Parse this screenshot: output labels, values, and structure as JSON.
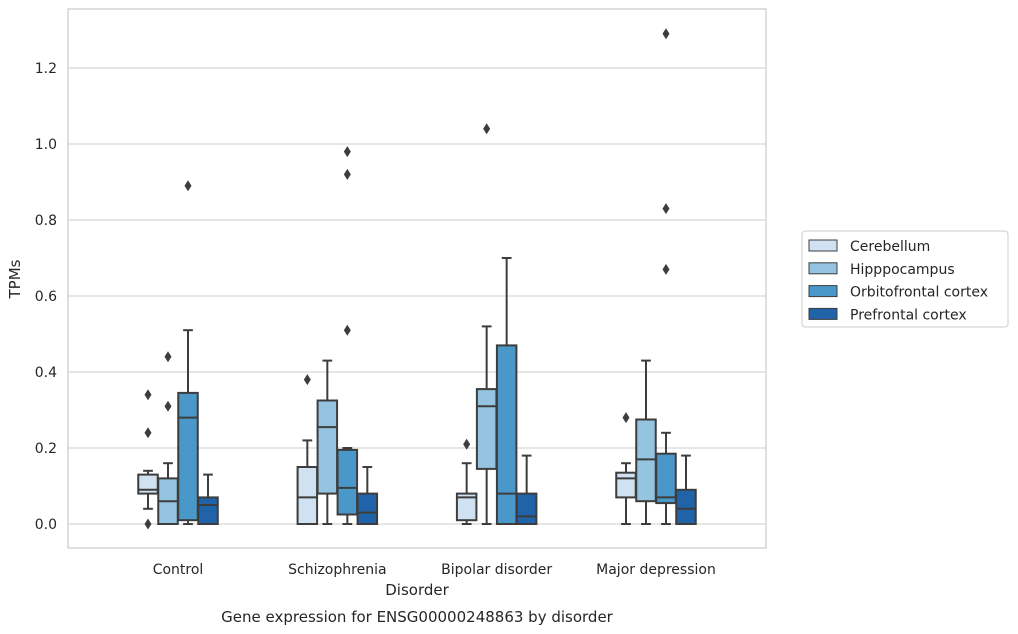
{
  "chart_data": {
    "type": "box",
    "title": "Gene expression for ENSG00000248863 by disorder",
    "xlabel": "Disorder",
    "ylabel": "TPMs",
    "ylim": [
      -0.065,
      1.355
    ],
    "yticks": [
      "0.0",
      "0.2",
      "0.4",
      "0.6",
      "0.8",
      "1.0",
      "1.2"
    ],
    "grid": true,
    "legend_position": "right",
    "categories": [
      "Control",
      "Schizophrenia",
      "Bipolar disorder",
      "Major depression"
    ],
    "series": [
      {
        "name": "Cerebellum",
        "color": "#d0e1f2",
        "boxes": [
          {
            "whislo": 0.04,
            "q1": 0.08,
            "med": 0.09,
            "q3": 0.13,
            "whishi": 0.14,
            "fliers": [
              0.0,
              0.24,
              0.34
            ]
          },
          {
            "whislo": 0.0,
            "q1": 0.0,
            "med": 0.07,
            "q3": 0.15,
            "whishi": 0.22,
            "fliers": [
              0.38
            ]
          },
          {
            "whislo": 0.0,
            "q1": 0.01,
            "med": 0.07,
            "q3": 0.08,
            "whishi": 0.16,
            "fliers": [
              0.21
            ]
          },
          {
            "whislo": 0.0,
            "q1": 0.07,
            "med": 0.12,
            "q3": 0.135,
            "whishi": 0.16,
            "fliers": [
              0.28
            ]
          }
        ]
      },
      {
        "name": "Hipppocampus",
        "color": "#94c4df",
        "boxes": [
          {
            "whislo": 0.0,
            "q1": 0.0,
            "med": 0.06,
            "q3": 0.12,
            "whishi": 0.16,
            "fliers": [
              0.31,
              0.44
            ]
          },
          {
            "whislo": 0.0,
            "q1": 0.08,
            "med": 0.255,
            "q3": 0.325,
            "whishi": 0.43,
            "fliers": []
          },
          {
            "whislo": 0.0,
            "q1": 0.145,
            "med": 0.31,
            "q3": 0.355,
            "whishi": 0.52,
            "fliers": [
              1.04
            ]
          },
          {
            "whislo": 0.0,
            "q1": 0.06,
            "med": 0.17,
            "q3": 0.275,
            "whishi": 0.43,
            "fliers": []
          }
        ]
      },
      {
        "name": "Orbitofrontal cortex",
        "color": "#4a98c9",
        "boxes": [
          {
            "whislo": 0.0,
            "q1": 0.01,
            "med": 0.28,
            "q3": 0.345,
            "whishi": 0.51,
            "fliers": [
              0.89
            ]
          },
          {
            "whislo": 0.0,
            "q1": 0.025,
            "med": 0.095,
            "q3": 0.195,
            "whishi": 0.2,
            "fliers": [
              0.51,
              0.92,
              0.98
            ]
          },
          {
            "whislo": 0.0,
            "q1": 0.0,
            "med": 0.08,
            "q3": 0.47,
            "whishi": 0.7,
            "fliers": []
          },
          {
            "whislo": 0.0,
            "q1": 0.055,
            "med": 0.07,
            "q3": 0.185,
            "whishi": 0.24,
            "fliers": [
              0.67,
              0.83,
              1.29
            ]
          }
        ]
      },
      {
        "name": "Prefrontal cortex",
        "color": "#2163a9",
        "boxes": [
          {
            "whislo": 0.0,
            "q1": 0.0,
            "med": 0.05,
            "q3": 0.07,
            "whishi": 0.13,
            "fliers": []
          },
          {
            "whislo": 0.0,
            "q1": 0.0,
            "med": 0.03,
            "q3": 0.08,
            "whishi": 0.15,
            "fliers": []
          },
          {
            "whislo": 0.0,
            "q1": 0.0,
            "med": 0.02,
            "q3": 0.08,
            "whishi": 0.18,
            "fliers": []
          },
          {
            "whislo": 0.0,
            "q1": 0.0,
            "med": 0.04,
            "q3": 0.09,
            "whishi": 0.18,
            "fliers": []
          }
        ]
      }
    ]
  }
}
